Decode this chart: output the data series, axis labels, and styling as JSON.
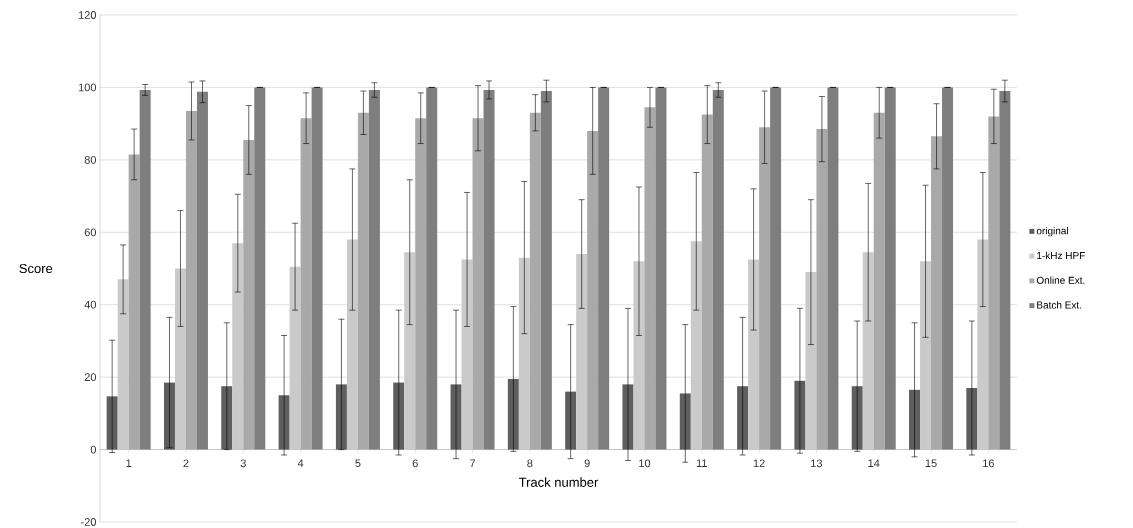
{
  "chart_data": {
    "type": "bar",
    "xlabel": "Track number",
    "ylabel": "Score",
    "categories": [
      "1",
      "2",
      "3",
      "4",
      "5",
      "6",
      "7",
      "8",
      "9",
      "10",
      "11",
      "12",
      "13",
      "14",
      "15",
      "16"
    ],
    "series": [
      {
        "name": "original",
        "color": "#5e5e5e",
        "values": [
          14.7,
          18.5,
          17.5,
          15,
          18,
          18.5,
          18,
          19.5,
          16,
          18,
          15.5,
          17.5,
          19,
          17.5,
          16.5,
          17
        ],
        "errors": [
          15.5,
          18,
          17.5,
          16.5,
          18,
          20,
          20.5,
          20,
          18.5,
          21,
          19,
          19,
          20,
          18,
          18.5,
          18.5
        ]
      },
      {
        "name": "1-kHz HPF",
        "color": "#cacaca",
        "values": [
          47,
          50,
          57,
          50.5,
          58,
          54.5,
          52.5,
          53,
          54,
          52,
          57.5,
          52.5,
          49,
          54.5,
          52,
          58
        ],
        "errors": [
          9.5,
          16,
          13.5,
          12,
          19.5,
          20,
          18.5,
          21,
          15,
          20.5,
          19,
          19.5,
          20,
          19,
          21,
          18.5
        ]
      },
      {
        "name": "Online Ext.",
        "color": "#a9a9a9",
        "values": [
          81.5,
          93.5,
          85.5,
          91.5,
          93,
          91.5,
          91.5,
          93,
          88,
          94.5,
          92.5,
          89,
          88.5,
          93,
          86.5,
          92
        ],
        "errors": [
          7,
          8,
          9.5,
          7,
          6,
          7,
          9,
          5,
          12,
          5.5,
          8,
          10,
          9,
          7,
          9,
          7.5
        ]
      },
      {
        "name": "Batch Ext.",
        "color": "#7e7e7e",
        "values": [
          99.3,
          98.8,
          100,
          100,
          99.3,
          100,
          99.3,
          99,
          100,
          100,
          99.3,
          100,
          100,
          100,
          100,
          99
        ],
        "errors": [
          1.5,
          3,
          0,
          0,
          2,
          0,
          2.5,
          3,
          0,
          0,
          2,
          0,
          0,
          0,
          0,
          3
        ]
      }
    ],
    "ylim": [
      -20,
      120
    ],
    "yticks": [
      -20,
      0,
      20,
      40,
      60,
      80,
      100,
      120
    ],
    "grid": "y",
    "legend": "right"
  }
}
